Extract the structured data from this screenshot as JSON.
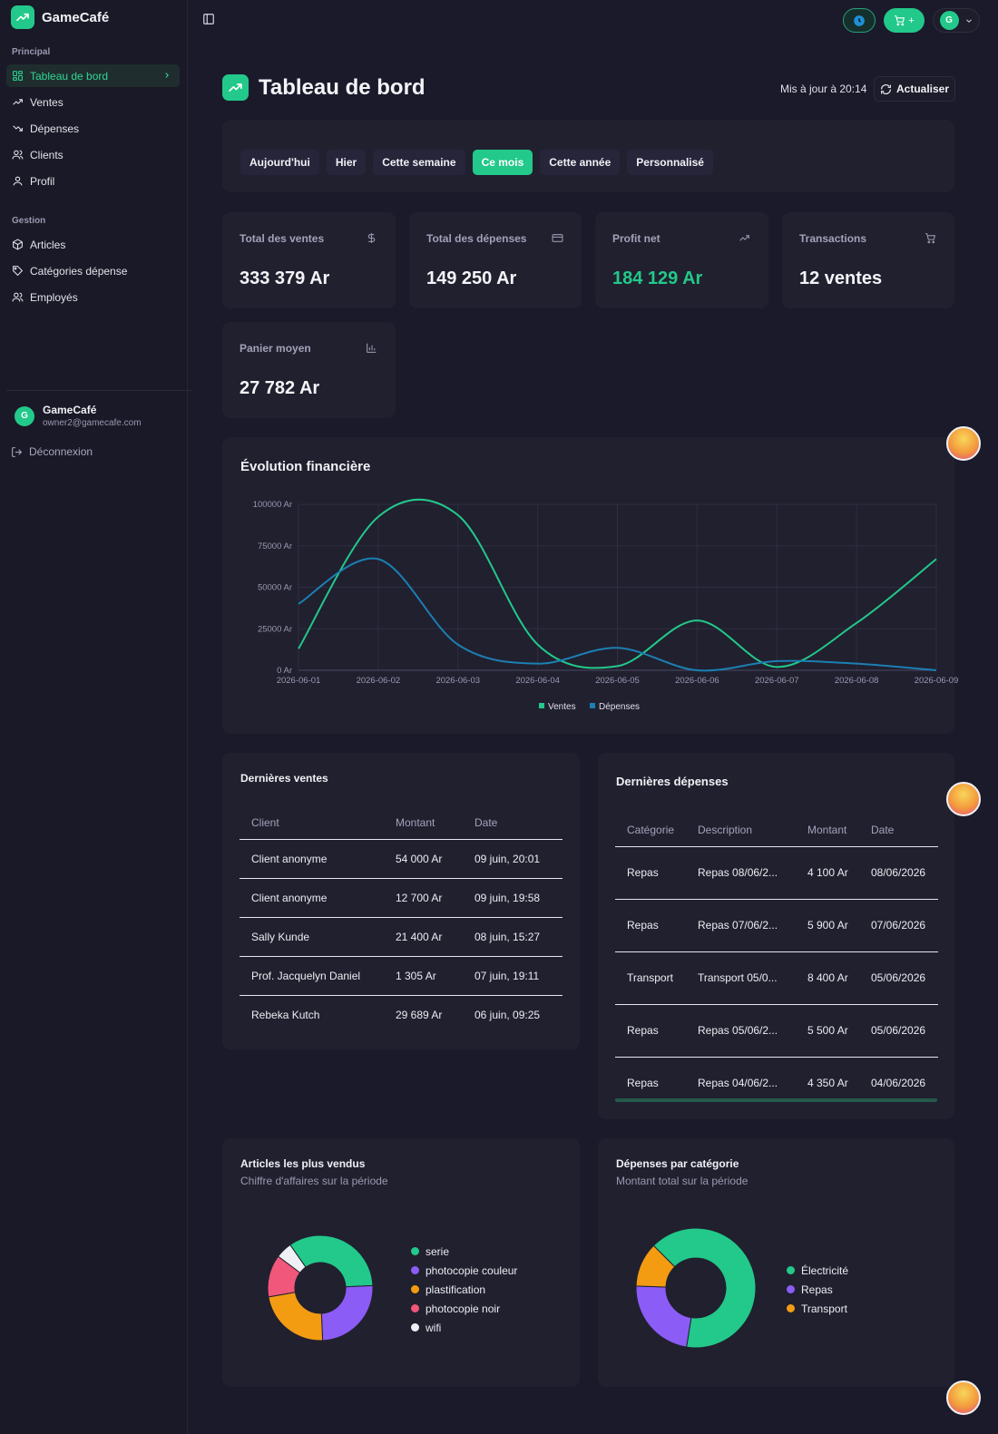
{
  "app": {
    "name": "GameCafé"
  },
  "sidebar": {
    "section_principal": "Principal",
    "principal_items": [
      {
        "label": "Tableau de bord",
        "icon": "dashboard-icon",
        "active": true
      },
      {
        "label": "Ventes",
        "icon": "trend-up-icon"
      },
      {
        "label": "Dépenses",
        "icon": "trend-down-icon"
      },
      {
        "label": "Clients",
        "icon": "users-icon"
      },
      {
        "label": "Profil",
        "icon": "user-icon"
      }
    ],
    "section_gestion": "Gestion",
    "gestion_items": [
      {
        "label": "Articles",
        "icon": "box-icon"
      },
      {
        "label": "Catégories dépense",
        "icon": "tag-icon"
      },
      {
        "label": "Employés",
        "icon": "users-icon"
      }
    ],
    "user": {
      "initial": "G",
      "name": "GameCafé",
      "email": "owner2@gamecafe.com"
    },
    "logout_label": "Déconnexion"
  },
  "topbar": {
    "cart_plus": "+",
    "avatar_initial": "G"
  },
  "header": {
    "title": "Tableau de bord",
    "updated": "Mis à jour à 20:14",
    "refresh_label": "Actualiser"
  },
  "periods": [
    "Aujourd'hui",
    "Hier",
    "Cette semaine",
    "Ce mois",
    "Cette année",
    "Personnalisé"
  ],
  "active_period": "Ce mois",
  "stats": [
    {
      "label": "Total des ventes",
      "value": "333 379 Ar",
      "icon": "dollar-icon"
    },
    {
      "label": "Total des dépenses",
      "value": "149 250 Ar",
      "icon": "card-icon"
    },
    {
      "label": "Profit net",
      "value": "184 129 Ar",
      "icon": "trend-up-icon",
      "accent": "#22c98a"
    },
    {
      "label": "Transactions",
      "value": "12 ventes",
      "icon": "cart-icon"
    },
    {
      "label": "Panier moyen",
      "value": "27 782 Ar",
      "icon": "bar-chart-icon"
    }
  ],
  "chart_data": {
    "type": "line",
    "title": "Évolution financière",
    "x": [
      "2026-06-01",
      "2026-06-02",
      "2026-06-03",
      "2026-06-04",
      "2026-06-05",
      "2026-06-06",
      "2026-06-07",
      "2026-06-08",
      "2026-06-09"
    ],
    "y_ticks": [
      "0 Ar",
      "25000 Ar",
      "50000 Ar",
      "75000 Ar",
      "100000 Ar"
    ],
    "ylim": [
      0,
      100000
    ],
    "grid": true,
    "legend": "bottom-center",
    "series": [
      {
        "name": "Ventes",
        "color": "#22c98a",
        "values": [
          13000,
          92500,
          93500,
          15500,
          2500,
          30000,
          2000,
          28500,
          67000
        ]
      },
      {
        "name": "Dépenses",
        "color": "#1b7fb3",
        "values": [
          40000,
          67000,
          15500,
          4000,
          13500,
          0,
          5500,
          4000,
          0
        ]
      }
    ]
  },
  "recent_sales": {
    "title": "Dernières ventes",
    "columns": [
      "Client",
      "Montant",
      "Date"
    ],
    "rows": [
      [
        "Client anonyme",
        "54 000 Ar",
        "09 juin, 20:01"
      ],
      [
        "Client anonyme",
        "12 700 Ar",
        "09 juin, 19:58"
      ],
      [
        "Sally Kunde",
        "21 400 Ar",
        "08 juin, 15:27"
      ],
      [
        "Prof. Jacquelyn Daniel",
        "1 305 Ar",
        "07 juin, 19:11"
      ],
      [
        "Rebeka Kutch",
        "29 689 Ar",
        "06 juin, 09:25"
      ]
    ]
  },
  "recent_expenses": {
    "title": "Dernières dépenses",
    "columns": [
      "Catégorie",
      "Description",
      "Montant",
      "Date"
    ],
    "rows": [
      [
        "Repas",
        "Repas 08/06/2...",
        "4 100 Ar",
        "08/06/2026"
      ],
      [
        "Repas",
        "Repas 07/06/2...",
        "5 900 Ar",
        "07/06/2026"
      ],
      [
        "Transport",
        "Transport 05/0...",
        "8 400 Ar",
        "05/06/2026"
      ],
      [
        "Repas",
        "Repas 05/06/2...",
        "5 500 Ar",
        "05/06/2026"
      ],
      [
        "Repas",
        "Repas 04/06/2...",
        "4 350 Ar",
        "04/06/2026"
      ]
    ]
  },
  "top_articles": {
    "title": "Articles les plus vendus",
    "subtitle": "Chiffre d'affaires sur la période",
    "chart_data": {
      "type": "pie",
      "labels": [
        "serie",
        "photocopie couleur",
        "plastification",
        "photocopie noir",
        "wifi"
      ],
      "values": [
        34,
        25,
        23,
        13,
        5
      ],
      "colors": [
        "#22c98a",
        "#8b5cf6",
        "#f39c12",
        "#f0577a",
        "#eef0f6"
      ]
    }
  },
  "expenses_by_category": {
    "title": "Dépenses par catégorie",
    "subtitle": "Montant total sur la période",
    "chart_data": {
      "type": "pie",
      "labels": [
        "Électricité",
        "Repas",
        "Transport"
      ],
      "values": [
        65,
        23,
        12
      ],
      "colors": [
        "#22c98a",
        "#8b5cf6",
        "#f39c12"
      ]
    }
  }
}
